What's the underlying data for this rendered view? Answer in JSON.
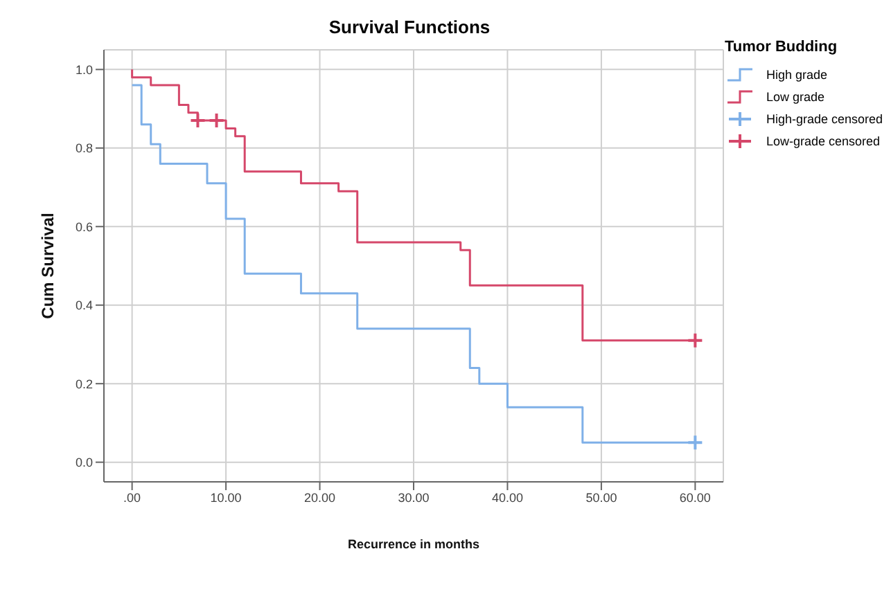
{
  "chart_data": {
    "type": "step",
    "title": "Survival Functions",
    "xlabel": "Recurrence in months",
    "ylabel": "Cum Survival",
    "legend_title": "Tumor Budding",
    "legend": "top right",
    "grid": true,
    "xlim": [
      -3,
      63
    ],
    "xticks": [
      {
        "value": 0,
        "label": ".00"
      },
      {
        "value": 10,
        "label": "10.00"
      },
      {
        "value": 20,
        "label": "20.00"
      },
      {
        "value": 30,
        "label": "30.00"
      },
      {
        "value": 40,
        "label": "40.00"
      },
      {
        "value": 50,
        "label": "50.00"
      },
      {
        "value": 60,
        "label": "60.00"
      }
    ],
    "ylim": [
      -0.05,
      1.05
    ],
    "yticks": [
      {
        "value": 0,
        "label": "0.0"
      },
      {
        "value": 0.2,
        "label": "0.2"
      },
      {
        "value": 0.4,
        "label": "0.4"
      },
      {
        "value": 0.6,
        "label": "0.6"
      },
      {
        "value": 0.8,
        "label": "0.8"
      },
      {
        "value": 1,
        "label": "1.0"
      }
    ],
    "series": [
      {
        "name": "High grade",
        "color": "#7fb0e8",
        "x": [
          0,
          1,
          2,
          3,
          8,
          10,
          12,
          18,
          24,
          36,
          37,
          40,
          48,
          60
        ],
        "values": [
          0.96,
          0.86,
          0.81,
          0.76,
          0.71,
          0.62,
          0.48,
          0.43,
          0.34,
          0.24,
          0.2,
          0.14,
          0.05,
          0.05
        ]
      },
      {
        "name": "Low grade",
        "color": "#d5476a",
        "x": [
          0,
          0,
          2,
          5,
          6,
          7,
          10,
          11,
          12,
          18,
          22,
          24,
          35,
          36,
          48,
          60
        ],
        "values": [
          1.0,
          0.98,
          0.96,
          0.91,
          0.89,
          0.87,
          0.85,
          0.83,
          0.74,
          0.71,
          0.69,
          0.56,
          0.54,
          0.45,
          0.31,
          0.31
        ]
      },
      {
        "name": "High-grade censored",
        "type": "scatter",
        "marker": "cross",
        "color": "#7fb0e8",
        "x": [
          60
        ],
        "values": [
          0.05
        ]
      },
      {
        "name": "Low-grade censored",
        "type": "scatter",
        "marker": "cross",
        "color": "#d5476a",
        "x": [
          7,
          9,
          60
        ],
        "values": [
          0.87,
          0.87,
          0.31
        ]
      }
    ]
  }
}
